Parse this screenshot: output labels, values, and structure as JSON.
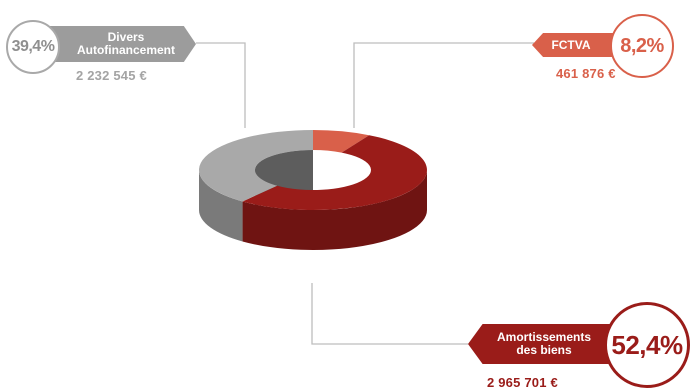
{
  "colors": {
    "divers": "#a9a9a9",
    "fctva": "#d9604a",
    "amortissements": "#9a1c19"
  },
  "chart_data": {
    "type": "pie",
    "variant": "3d-donut",
    "title": "",
    "slices": [
      {
        "name": "FCTVA",
        "label": "FCTVA",
        "percent_label": "8,2%",
        "amount": "461 876 €",
        "value": 8.2,
        "color": "#d9604a"
      },
      {
        "name": "Amortissements des biens",
        "label_lines": [
          "Amortissements",
          "des biens"
        ],
        "percent_label": "52,4%",
        "amount": "2 965 701 €",
        "value": 52.4,
        "color": "#9a1c19"
      },
      {
        "name": "Divers Autofinancement",
        "label_lines": [
          "Divers",
          "Autofinancement"
        ],
        "percent_label": "39,4%",
        "amount": "2 232 545 €",
        "value": 39.4,
        "color": "#a9a9a9"
      }
    ]
  }
}
